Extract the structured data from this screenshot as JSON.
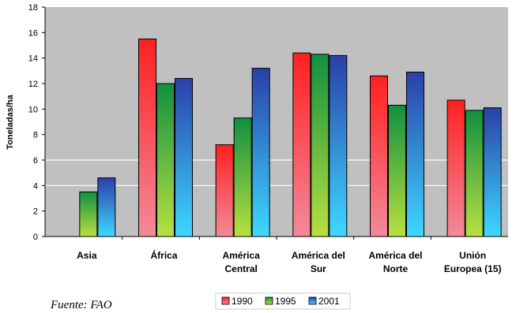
{
  "chart_data": {
    "type": "bar",
    "ylabel": "Toneladas/ha",
    "ylim": [
      0,
      18
    ],
    "yticks": [
      0,
      2,
      4,
      6,
      8,
      10,
      12,
      14,
      16,
      18
    ],
    "grid": "horizontal at 4 and 6",
    "legend_position": "bottom",
    "categories": [
      [
        "Asia"
      ],
      [
        "África"
      ],
      [
        "América",
        "Central"
      ],
      [
        "América del",
        "Sur"
      ],
      [
        "América del",
        "Norte"
      ],
      [
        "Unión",
        "Europea (15)"
      ]
    ],
    "series": [
      {
        "name": "1990",
        "color": "#e63a3a",
        "values": [
          null,
          15.5,
          7.2,
          14.4,
          12.6,
          10.7
        ]
      },
      {
        "name": "1995",
        "color": "#3fae55",
        "values": [
          3.5,
          12.0,
          9.3,
          14.3,
          10.3,
          9.9
        ]
      },
      {
        "name": "2001",
        "color": "#3f6fd0",
        "values": [
          4.6,
          12.4,
          13.2,
          14.2,
          12.9,
          10.1
        ]
      }
    ]
  },
  "source_note": "Fuente: FAO"
}
